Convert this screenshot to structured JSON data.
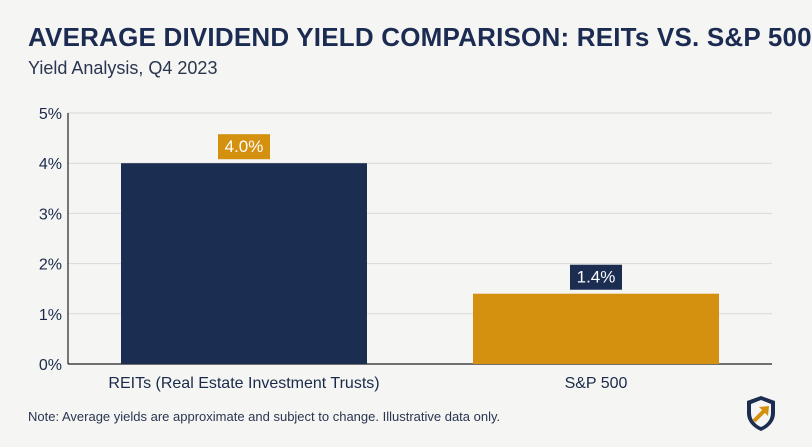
{
  "title": "AVERAGE DIVIDEND YIELD COMPARISON: REITs VS. S&P 500",
  "subtitle": "Yield Analysis, Q4 2023",
  "note": "Note: Average yields are approximate and subject to change. Illustrative data only.",
  "logo_icon": "shield-arrow-icon",
  "colors": {
    "reit_bar": "#1c2d52",
    "sp500_bar": "#d4900f",
    "grid": "#d8d8d8",
    "axis": "#222222",
    "text": "#1a2a4a"
  },
  "chart_data": {
    "type": "bar",
    "title": "AVERAGE DIVIDEND YIELD COMPARISON: REITs VS. S&P 500",
    "subtitle": "Yield Analysis, Q4 2023",
    "xlabel": "",
    "ylabel": "",
    "categories": [
      "REITs (Real Estate Investment Trusts)",
      "S&P 500"
    ],
    "values": [
      4.0,
      1.4
    ],
    "data_labels": [
      "4.0%",
      "1.4%"
    ],
    "bar_colors": [
      "#1c2d52",
      "#d4900f"
    ],
    "label_colors": [
      "#d4900f",
      "#1c2d52"
    ],
    "ylim": [
      0,
      5
    ],
    "yticks": [
      0,
      1,
      2,
      3,
      4,
      5
    ],
    "ytick_labels": [
      "0%",
      "1%",
      "2%",
      "3%",
      "4%",
      "5%"
    ],
    "grid": true
  }
}
